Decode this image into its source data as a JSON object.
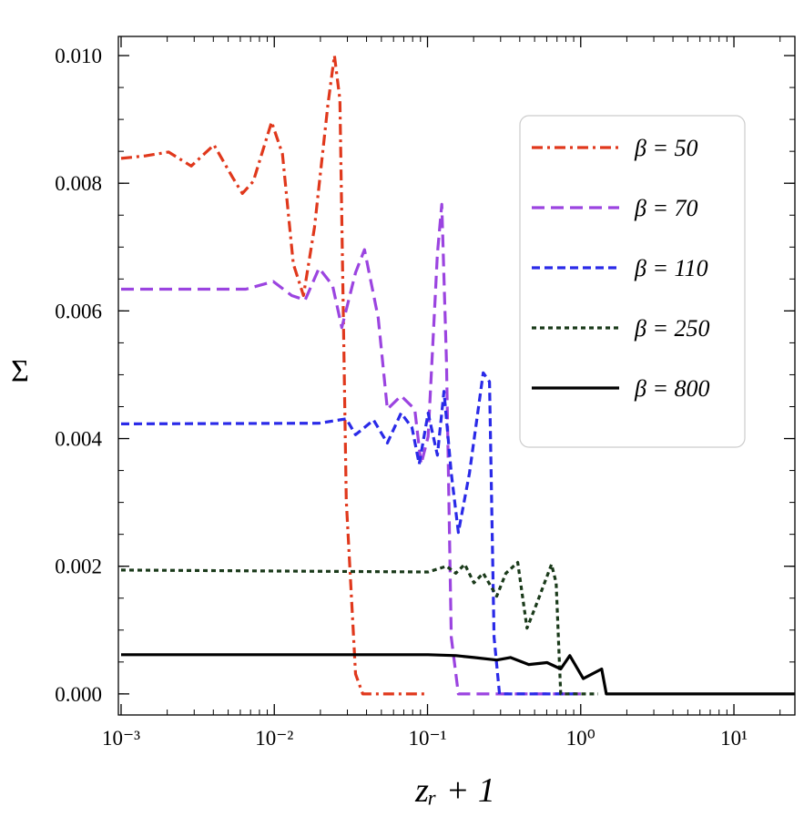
{
  "chart_data": {
    "type": "line",
    "xlabel": "zᵣ + 1",
    "ylabel": "Σ",
    "xscale": "log",
    "xlim": [
      0.00096,
      25
    ],
    "ylim": [
      -0.00033,
      0.0103
    ],
    "xticks": [
      {
        "value": 0.001,
        "label": "10⁻³"
      },
      {
        "value": 0.01,
        "label": "10⁻²"
      },
      {
        "value": 0.1,
        "label": "10⁻¹"
      },
      {
        "value": 1,
        "label": "10⁰"
      },
      {
        "value": 10,
        "label": "10¹"
      }
    ],
    "yticks": [
      {
        "value": 0,
        "label": "0.000"
      },
      {
        "value": 0.002,
        "label": "0.002"
      },
      {
        "value": 0.004,
        "label": "0.004"
      },
      {
        "value": 0.006,
        "label": "0.006"
      },
      {
        "value": 0.008,
        "label": "0.008"
      },
      {
        "value": 0.01,
        "label": "0.010"
      }
    ],
    "legend": "upper right",
    "series": [
      {
        "name": "β = 50",
        "color": "#e0381c",
        "linestyle": "dashdot",
        "x": [
          0.001,
          0.00145,
          0.00204,
          0.00287,
          0.00404,
          0.00532,
          0.00619,
          0.0073,
          0.0096,
          0.0113,
          0.0133,
          0.0155,
          0.0183,
          0.0224,
          0.0247,
          0.0268,
          0.0295,
          0.0339,
          0.0378,
          0.1
        ],
        "values": [
          0.00839,
          0.00843,
          0.00849,
          0.00827,
          0.0086,
          0.0081,
          0.00784,
          0.00803,
          0.00896,
          0.00846,
          0.00674,
          0.00624,
          0.00731,
          0.00924,
          0.01,
          0.00931,
          0.00303,
          0.00031,
          0,
          0
        ]
      },
      {
        "name": "β = 70",
        "color": "#9b44e0",
        "linestyle": "dashed",
        "x": [
          0.001,
          0.00433,
          0.00653,
          0.00986,
          0.013,
          0.0159,
          0.0196,
          0.024,
          0.0276,
          0.0339,
          0.0388,
          0.0477,
          0.0547,
          0.0672,
          0.0826,
          0.0908,
          0.101,
          0.116,
          0.124,
          0.133,
          0.143,
          0.159,
          1.0
        ],
        "values": [
          0.00634,
          0.00634,
          0.00634,
          0.00646,
          0.00624,
          0.00617,
          0.00667,
          0.0064,
          0.00574,
          0.0066,
          0.00696,
          0.00589,
          0.00446,
          0.00467,
          0.00446,
          0.0036,
          0.00403,
          0.0069,
          0.00767,
          0.00517,
          0.00089,
          0,
          0
        ]
      },
      {
        "name": "β = 110",
        "color": "#2a2ae8",
        "linestyle": "dashed-short",
        "x": [
          0.001,
          0.0196,
          0.0295,
          0.0339,
          0.0445,
          0.0547,
          0.0672,
          0.0792,
          0.0883,
          0.101,
          0.116,
          0.128,
          0.143,
          0.159,
          0.188,
          0.231,
          0.254,
          0.272,
          0.295,
          1.0
        ],
        "values": [
          0.00423,
          0.00424,
          0.00431,
          0.00406,
          0.00429,
          0.00393,
          0.0044,
          0.00417,
          0.0036,
          0.0044,
          0.00374,
          0.00474,
          0.00346,
          0.00253,
          0.00346,
          0.00503,
          0.00489,
          0.00089,
          0,
          0
        ]
      },
      {
        "name": "β = 250",
        "color": "#1a3a1a",
        "linestyle": "dotted",
        "x": [
          0.001,
          0.101,
          0.133,
          0.153,
          0.175,
          0.201,
          0.231,
          0.283,
          0.325,
          0.388,
          0.446,
          0.525,
          0.645,
          0.691,
          0.74,
          1.3
        ],
        "values": [
          0.00194,
          0.00191,
          0.002,
          0.00189,
          0.00203,
          0.00174,
          0.00189,
          0.00153,
          0.00189,
          0.00206,
          0.00103,
          0.00146,
          0.00203,
          0.00174,
          0,
          0
        ]
      },
      {
        "name": "β = 800",
        "color": "#000000",
        "linestyle": "solid",
        "x": [
          0.001,
          0.101,
          0.153,
          0.201,
          0.283,
          0.348,
          0.458,
          0.603,
          0.74,
          0.849,
          1.04,
          1.37,
          1.47,
          25
        ],
        "values": [
          0.000614,
          0.000614,
          0.0006,
          0.00057,
          0.00053,
          0.00057,
          0.00046,
          0.00049,
          0.00039,
          0.0006,
          0.00024,
          0.00039,
          0,
          0
        ]
      }
    ]
  }
}
